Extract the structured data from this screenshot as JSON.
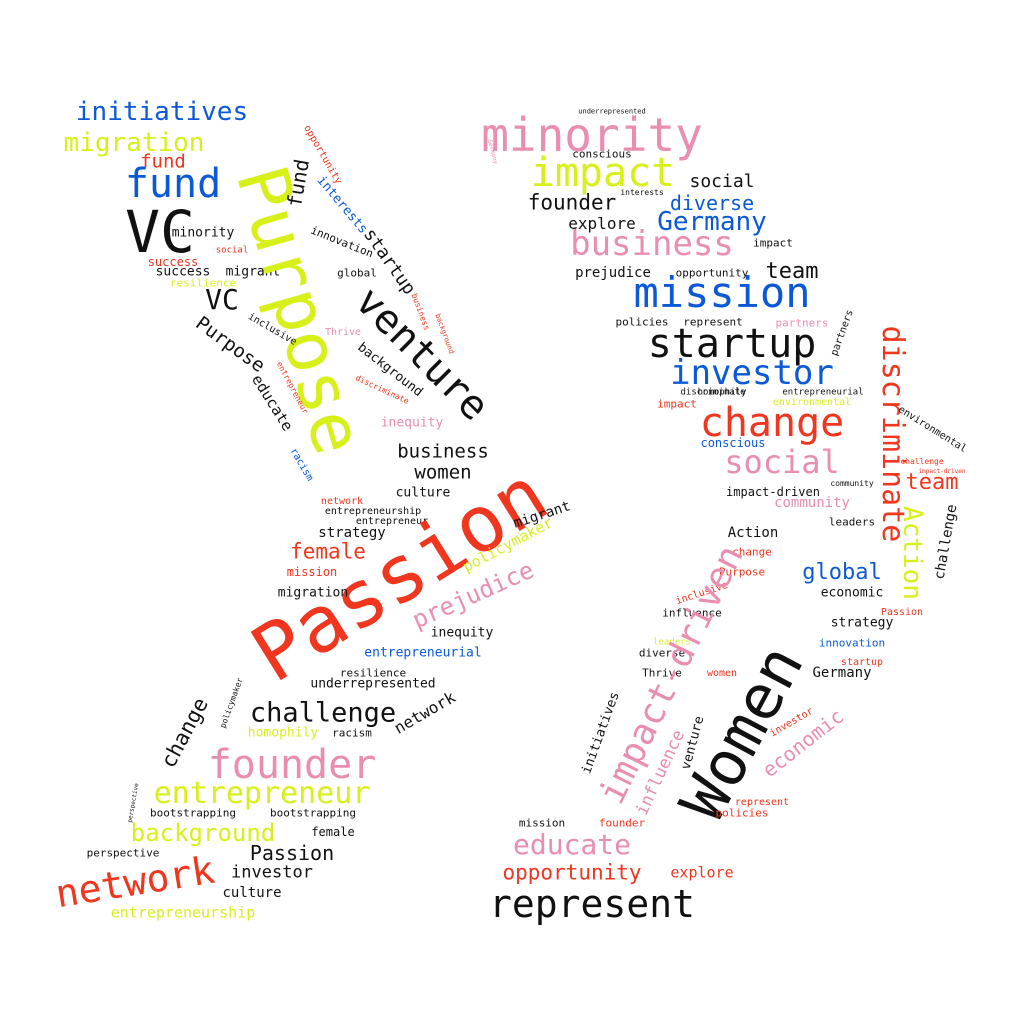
{
  "palette": {
    "pink": "#e98db1",
    "red": "#f0361e",
    "black": "#111111",
    "blue": "#0b59d6",
    "yellow": "#d7f01a",
    "background": "#ffffff"
  },
  "words": [
    {
      "text": "initiatives",
      "color": "blue"
    },
    {
      "text": "migration",
      "color": "yellow"
    },
    {
      "text": "fund",
      "color": "red"
    },
    {
      "text": "fund",
      "color": "blue"
    },
    {
      "text": "VC",
      "color": "black"
    },
    {
      "text": "minority",
      "color": "black"
    },
    {
      "text": "social",
      "color": "red"
    },
    {
      "text": "success",
      "color": "red"
    },
    {
      "text": "success",
      "color": "black"
    },
    {
      "text": "migrant",
      "color": "black"
    },
    {
      "text": "resilience",
      "color": "yellow"
    },
    {
      "text": "VC",
      "color": "black"
    },
    {
      "text": "Purpose",
      "color": "yellow"
    },
    {
      "text": "opportunity",
      "color": "red"
    },
    {
      "text": "fund",
      "color": "black"
    },
    {
      "text": "interests",
      "color": "blue"
    },
    {
      "text": "innovation",
      "color": "black"
    },
    {
      "text": "startup",
      "color": "black"
    },
    {
      "text": "global",
      "color": "black"
    },
    {
      "text": "venture",
      "color": "black"
    },
    {
      "text": "Purpose",
      "color": "black"
    },
    {
      "text": "inclusive",
      "color": "black"
    },
    {
      "text": "Thrive",
      "color": "pink"
    },
    {
      "text": "business",
      "color": "red"
    },
    {
      "text": "background",
      "color": "red"
    },
    {
      "text": "background",
      "color": "black"
    },
    {
      "text": "educate",
      "color": "black"
    },
    {
      "text": "entrepreneur",
      "color": "red"
    },
    {
      "text": "discriminate",
      "color": "red"
    },
    {
      "text": "inequity",
      "color": "pink"
    },
    {
      "text": "racism",
      "color": "blue"
    },
    {
      "text": "business",
      "color": "black"
    },
    {
      "text": "women",
      "color": "black"
    },
    {
      "text": "culture",
      "color": "black"
    },
    {
      "text": "network",
      "color": "red"
    },
    {
      "text": "entrepreneurship",
      "color": "black"
    },
    {
      "text": "entrepreneur",
      "color": "black"
    },
    {
      "text": "strategy",
      "color": "black"
    },
    {
      "text": "female",
      "color": "red"
    },
    {
      "text": "mission",
      "color": "red"
    },
    {
      "text": "Passion",
      "color": "red"
    },
    {
      "text": "migrant",
      "color": "black"
    },
    {
      "text": "policymaker",
      "color": "yellow"
    },
    {
      "text": "prejudice",
      "color": "pink"
    },
    {
      "text": "migration",
      "color": "black"
    },
    {
      "text": "inequity",
      "color": "black"
    },
    {
      "text": "entrepreneurial",
      "color": "blue"
    },
    {
      "text": "resilience",
      "color": "black"
    },
    {
      "text": "underrepresented",
      "color": "black"
    },
    {
      "text": "network",
      "color": "black"
    },
    {
      "text": "policymaker",
      "color": "black"
    },
    {
      "text": "challenge",
      "color": "black"
    },
    {
      "text": "homophily",
      "color": "yellow"
    },
    {
      "text": "racism",
      "color": "black"
    },
    {
      "text": "change",
      "color": "black"
    },
    {
      "text": "founder",
      "color": "pink"
    },
    {
      "text": "perspective",
      "color": "black"
    },
    {
      "text": "entrepreneur",
      "color": "yellow"
    },
    {
      "text": "bootstrapping",
      "color": "black"
    },
    {
      "text": "bootstrapping",
      "color": "black"
    },
    {
      "text": "background",
      "color": "yellow"
    },
    {
      "text": "female",
      "color": "black"
    },
    {
      "text": "perspective",
      "color": "black"
    },
    {
      "text": "Passion",
      "color": "black"
    },
    {
      "text": "network",
      "color": "red"
    },
    {
      "text": "investor",
      "color": "black"
    },
    {
      "text": "culture",
      "color": "black"
    },
    {
      "text": "entrepreneurship",
      "color": "yellow"
    },
    {
      "text": "underrepresented",
      "color": "black"
    },
    {
      "text": "minority",
      "color": "pink"
    },
    {
      "text": "Germany",
      "color": "pink"
    },
    {
      "text": "conscious",
      "color": "black"
    },
    {
      "text": "impact",
      "color": "yellow"
    },
    {
      "text": "interests",
      "color": "black"
    },
    {
      "text": "social",
      "color": "black"
    },
    {
      "text": "founder",
      "color": "black"
    },
    {
      "text": "diverse",
      "color": "blue"
    },
    {
      "text": "explore",
      "color": "black"
    },
    {
      "text": "Germany",
      "color": "blue"
    },
    {
      "text": "business",
      "color": "pink"
    },
    {
      "text": "impact",
      "color": "black"
    },
    {
      "text": "prejudice",
      "color": "black"
    },
    {
      "text": "opportunity",
      "color": "black"
    },
    {
      "text": "team",
      "color": "black"
    },
    {
      "text": "mission",
      "color": "blue"
    },
    {
      "text": "policies",
      "color": "black"
    },
    {
      "text": "represent",
      "color": "black"
    },
    {
      "text": "partners",
      "color": "pink"
    },
    {
      "text": "partners",
      "color": "black"
    },
    {
      "text": "startup",
      "color": "black"
    },
    {
      "text": "investor",
      "color": "blue"
    },
    {
      "text": "discriminate",
      "color": "red"
    },
    {
      "text": "discriminate",
      "color": "black"
    },
    {
      "text": "homophily",
      "color": "black"
    },
    {
      "text": "entrepreneurial",
      "color": "black"
    },
    {
      "text": "impact",
      "color": "red"
    },
    {
      "text": "environmental",
      "color": "yellow"
    },
    {
      "text": "change",
      "color": "red"
    },
    {
      "text": "environmental",
      "color": "black"
    },
    {
      "text": "conscious",
      "color": "blue"
    },
    {
      "text": "social",
      "color": "pink"
    },
    {
      "text": "challenge",
      "color": "red"
    },
    {
      "text": "impact-driven",
      "color": "red"
    },
    {
      "text": "community",
      "color": "black"
    },
    {
      "text": "team",
      "color": "red"
    },
    {
      "text": "impact-driven",
      "color": "black"
    },
    {
      "text": "community",
      "color": "pink"
    },
    {
      "text": "leaders",
      "color": "black"
    },
    {
      "text": "Action",
      "color": "yellow"
    },
    {
      "text": "challenge",
      "color": "black"
    },
    {
      "text": "Action",
      "color": "black"
    },
    {
      "text": "change",
      "color": "red"
    },
    {
      "text": "Purpose",
      "color": "red"
    },
    {
      "text": "global",
      "color": "blue"
    },
    {
      "text": "inclusive",
      "color": "red"
    },
    {
      "text": "economic",
      "color": "black"
    },
    {
      "text": "influence",
      "color": "black"
    },
    {
      "text": "strategy",
      "color": "black"
    },
    {
      "text": "Passion",
      "color": "red"
    },
    {
      "text": "leaders",
      "color": "yellow"
    },
    {
      "text": "innovation",
      "color": "blue"
    },
    {
      "text": "diverse",
      "color": "black"
    },
    {
      "text": "startup",
      "color": "red"
    },
    {
      "text": "Thrive",
      "color": "black"
    },
    {
      "text": "women",
      "color": "red"
    },
    {
      "text": "Germany",
      "color": "black"
    },
    {
      "text": "impact-driven",
      "color": "pink"
    },
    {
      "text": "Women",
      "color": "black"
    },
    {
      "text": "investor",
      "color": "red"
    },
    {
      "text": "economic",
      "color": "pink"
    },
    {
      "text": "initiatives",
      "color": "black"
    },
    {
      "text": "venture",
      "color": "black"
    },
    {
      "text": "influence",
      "color": "pink"
    },
    {
      "text": "represent",
      "color": "red"
    },
    {
      "text": "policies",
      "color": "red"
    },
    {
      "text": "mission",
      "color": "black"
    },
    {
      "text": "founder",
      "color": "red"
    },
    {
      "text": "educate",
      "color": "pink"
    },
    {
      "text": "opportunity",
      "color": "red"
    },
    {
      "text": "explore",
      "color": "red"
    },
    {
      "text": "represent",
      "color": "black"
    }
  ]
}
